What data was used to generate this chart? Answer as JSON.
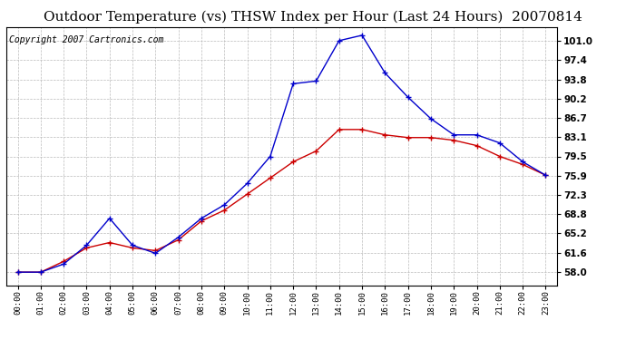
{
  "title": "Outdoor Temperature (vs) THSW Index per Hour (Last 24 Hours)  20070814",
  "copyright": "Copyright 2007 Cartronics.com",
  "hours": [
    "00:00",
    "01:00",
    "02:00",
    "03:00",
    "04:00",
    "05:00",
    "06:00",
    "07:00",
    "08:00",
    "09:00",
    "10:00",
    "11:00",
    "12:00",
    "13:00",
    "14:00",
    "15:00",
    "16:00",
    "17:00",
    "18:00",
    "19:00",
    "20:00",
    "21:00",
    "22:00",
    "23:00"
  ],
  "temp": [
    58.0,
    58.0,
    60.0,
    62.5,
    63.5,
    62.5,
    62.0,
    64.0,
    67.5,
    69.5,
    72.5,
    75.5,
    78.5,
    80.5,
    84.5,
    84.5,
    83.5,
    83.0,
    83.0,
    82.5,
    81.5,
    79.5,
    78.0,
    76.0
  ],
  "thsw": [
    58.0,
    58.0,
    59.5,
    63.0,
    68.0,
    63.0,
    61.5,
    64.5,
    68.0,
    70.5,
    74.5,
    79.5,
    93.0,
    93.5,
    101.0,
    102.0,
    95.0,
    90.5,
    86.5,
    83.5,
    83.5,
    82.0,
    78.5,
    76.0
  ],
  "temp_color": "#cc0000",
  "thsw_color": "#0000cc",
  "yticks": [
    58.0,
    61.6,
    65.2,
    68.8,
    72.3,
    75.9,
    79.5,
    83.1,
    86.7,
    90.2,
    93.8,
    97.4,
    101.0
  ],
  "ylim": [
    55.5,
    103.5
  ],
  "bg_color": "#ffffff",
  "plot_bg": "#ffffff",
  "grid_color": "#bbbbbb",
  "title_fontsize": 11,
  "copyright_fontsize": 7
}
